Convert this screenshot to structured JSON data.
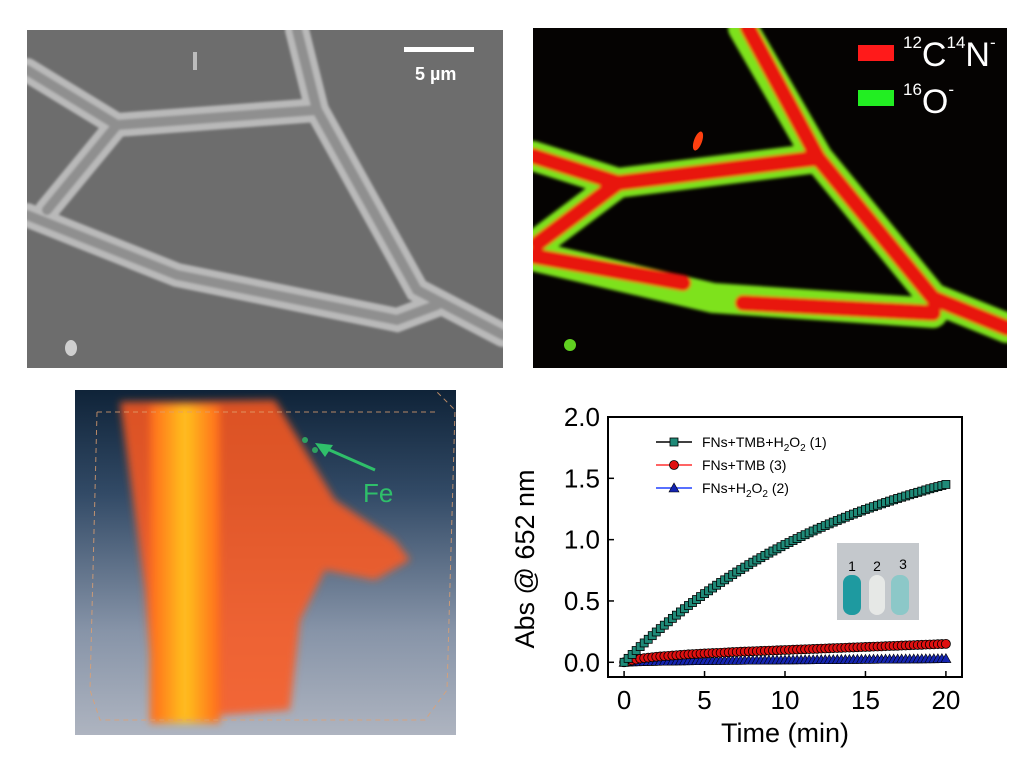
{
  "panels": {
    "sem": {
      "scale_bar_label": "5 µm"
    },
    "sims": {
      "legend": [
        {
          "label_pre": "12",
          "label_a": "C",
          "label_mid": "14",
          "label_b": "N",
          "label_sup": "-",
          "color": "#ff1a1a"
        },
        {
          "label_pre": "16",
          "label_a": "O",
          "label_mid": "",
          "label_b": "",
          "label_sup": "-",
          "color": "#22ee22"
        }
      ]
    },
    "volume": {
      "annotation": "Fe",
      "annotation_color": "#2fbf6a"
    }
  },
  "chart_data": {
    "type": "scatter",
    "title": "",
    "xlabel": "Time (min)",
    "ylabel": "Abs @ 652 nm",
    "xlim": [
      -1,
      21
    ],
    "ylim": [
      -0.12,
      2.0
    ],
    "xticks": [
      "0",
      "5",
      "10",
      "15",
      "20"
    ],
    "yticks": [
      "0.0",
      "0.5",
      "1.0",
      "1.5",
      "2.0"
    ],
    "legend_position": "top-left",
    "x": [
      0,
      1,
      2,
      3,
      4,
      5,
      6,
      7,
      8,
      9,
      10,
      11,
      12,
      13,
      14,
      15,
      16,
      17,
      18,
      19,
      20
    ],
    "series": [
      {
        "name": "FNs+TMB+H2O2 (1)",
        "label_main": "FNs+TMB+H",
        "label_sub1": "2",
        "label_mid": "O",
        "label_sub2": "2",
        "label_end": " (1)",
        "marker": "square",
        "color": "#1f8a78",
        "line": "#000000",
        "values": [
          0,
          0.128,
          0.247,
          0.358,
          0.463,
          0.56,
          0.651,
          0.736,
          0.816,
          0.89,
          0.96,
          1.025,
          1.086,
          1.143,
          1.196,
          1.246,
          1.292,
          1.336,
          1.376,
          1.415,
          1.45
        ]
      },
      {
        "name": "FNs+TMB (3)",
        "label_main": "FNs+TMB (3)",
        "label_sub1": "",
        "label_mid": "",
        "label_sub2": "",
        "label_end": "",
        "marker": "circle",
        "color": "#e01010",
        "line": "#ff3030",
        "values": [
          0,
          0.03,
          0.045,
          0.055,
          0.065,
          0.072,
          0.078,
          0.085,
          0.09,
          0.095,
          0.1,
          0.105,
          0.11,
          0.115,
          0.12,
          0.125,
          0.13,
          0.135,
          0.14,
          0.145,
          0.15
        ]
      },
      {
        "name": "FNs+H2O2 (2)",
        "label_main": "FNs+H",
        "label_sub1": "2",
        "label_mid": "O",
        "label_sub2": "2",
        "label_end": " (2)",
        "marker": "triangle",
        "color": "#1424b0",
        "line": "#2040ff",
        "values": [
          0,
          0.005,
          0.008,
          0.01,
          0.012,
          0.014,
          0.015,
          0.016,
          0.017,
          0.018,
          0.019,
          0.02,
          0.021,
          0.022,
          0.023,
          0.024,
          0.025,
          0.026,
          0.027,
          0.028,
          0.03
        ]
      }
    ],
    "inset": {
      "labels": [
        "1",
        "2",
        "3"
      ]
    }
  }
}
